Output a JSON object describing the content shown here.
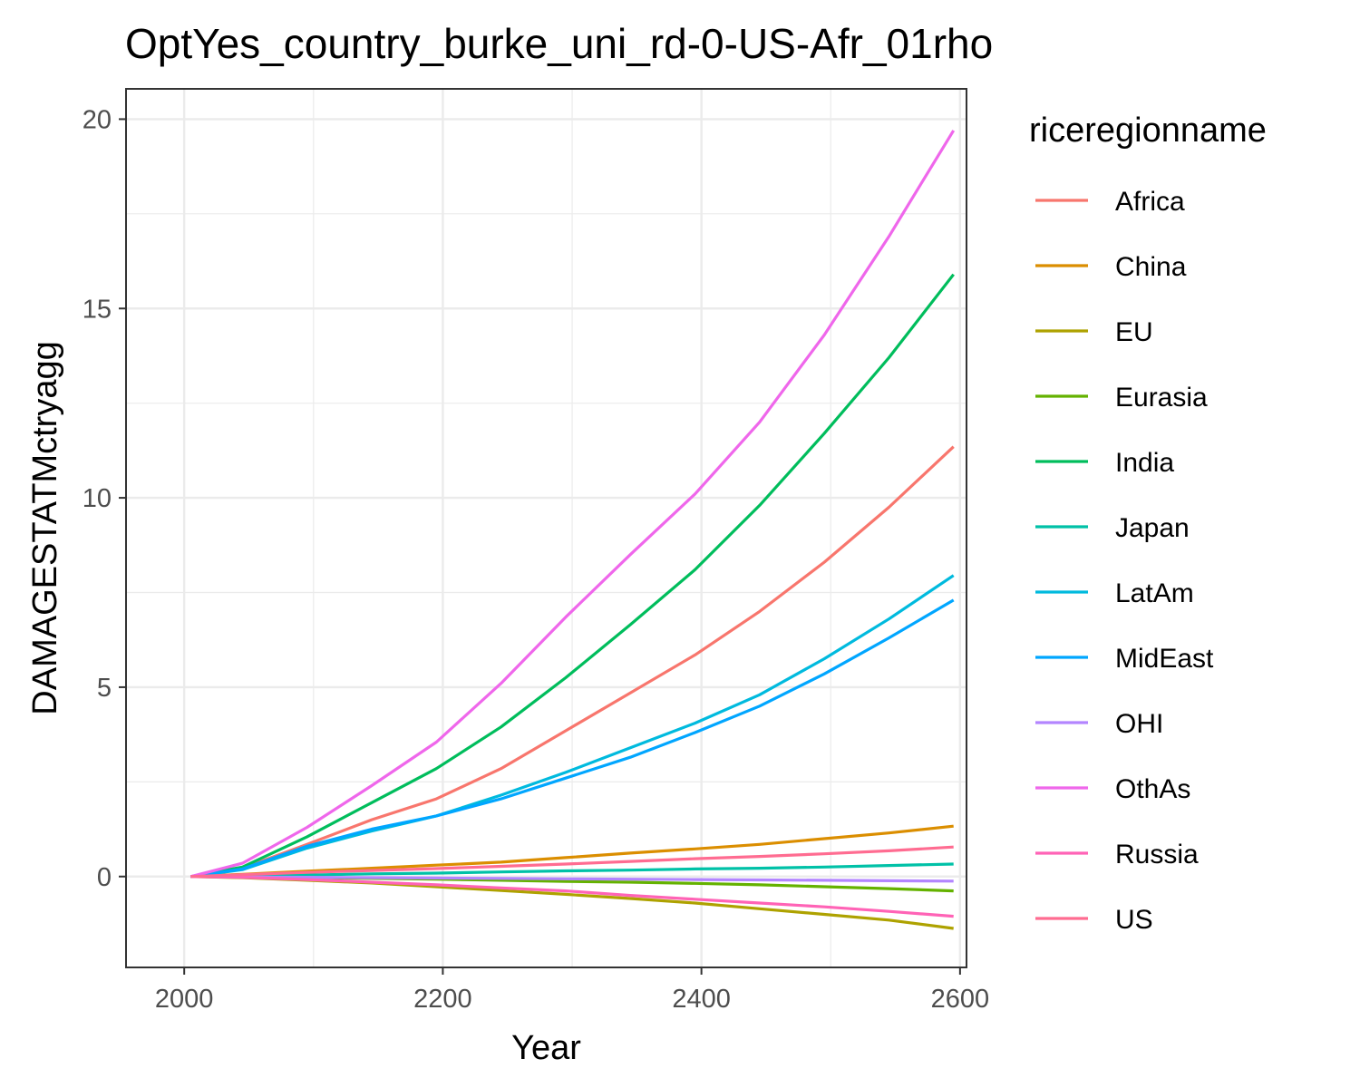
{
  "chart_data": {
    "type": "line",
    "title": "OptYes_country_burke_uni_rd-0-US-Afr_01rho",
    "xlabel": "Year",
    "ylabel": "DAMAGESTATMctryagg",
    "xlim": [
      1955,
      2605
    ],
    "ylim": [
      -2.4,
      20.8
    ],
    "x_ticks": [
      "2000",
      "2200",
      "2400",
      "2600"
    ],
    "y_ticks": [
      "0",
      "5",
      "10",
      "15",
      "20"
    ],
    "grid": true,
    "legend": {
      "title": "riceregionname",
      "position": "right"
    },
    "x": [
      2005,
      2045,
      2095,
      2145,
      2195,
      2245,
      2295,
      2345,
      2395,
      2445,
      2495,
      2545,
      2595
    ],
    "series": [
      {
        "name": "Africa",
        "color": "#F8766D",
        "values": [
          0,
          0.22,
          0.85,
          1.5,
          2.05,
          2.85,
          3.85,
          4.85,
          5.85,
          7.0,
          8.3,
          9.75,
          11.35
        ]
      },
      {
        "name": "China",
        "color": "#DB8E00",
        "values": [
          0,
          0.06,
          0.14,
          0.22,
          0.3,
          0.38,
          0.5,
          0.62,
          0.73,
          0.85,
          1.0,
          1.15,
          1.33
        ]
      },
      {
        "name": "EU",
        "color": "#AEA200",
        "values": [
          0,
          -0.03,
          -0.1,
          -0.17,
          -0.27,
          -0.37,
          -0.47,
          -0.58,
          -0.7,
          -0.85,
          -1.0,
          -1.15,
          -1.37
        ]
      },
      {
        "name": "Eurasia",
        "color": "#64B200",
        "values": [
          0,
          -0.01,
          -0.03,
          -0.05,
          -0.07,
          -0.1,
          -0.13,
          -0.15,
          -0.18,
          -0.22,
          -0.27,
          -0.32,
          -0.38
        ]
      },
      {
        "name": "India",
        "color": "#00BD5C",
        "values": [
          0,
          0.25,
          1.05,
          1.95,
          2.85,
          3.95,
          5.25,
          6.65,
          8.1,
          9.8,
          11.7,
          13.7,
          15.9
        ]
      },
      {
        "name": "Japan",
        "color": "#00C1A7",
        "values": [
          0,
          0.02,
          0.04,
          0.07,
          0.09,
          0.12,
          0.15,
          0.17,
          0.2,
          0.22,
          0.25,
          0.29,
          0.33
        ]
      },
      {
        "name": "LatAm",
        "color": "#00BADE",
        "values": [
          0,
          0.18,
          0.75,
          1.2,
          1.6,
          2.15,
          2.75,
          3.4,
          4.05,
          4.8,
          5.75,
          6.8,
          7.95
        ]
      },
      {
        "name": "MidEast",
        "color": "#00A6FF",
        "values": [
          0,
          0.2,
          0.8,
          1.25,
          1.6,
          2.05,
          2.6,
          3.15,
          3.8,
          4.5,
          5.35,
          6.3,
          7.3
        ]
      },
      {
        "name": "OHI",
        "color": "#B385FF",
        "values": [
          0,
          -0.01,
          -0.02,
          -0.03,
          -0.04,
          -0.05,
          -0.06,
          -0.07,
          -0.08,
          -0.09,
          -0.1,
          -0.11,
          -0.12
        ]
      },
      {
        "name": "OthAs",
        "color": "#EF67EB",
        "values": [
          0,
          0.35,
          1.3,
          2.4,
          3.55,
          5.1,
          6.85,
          8.5,
          10.1,
          12.0,
          14.3,
          16.9,
          19.7
        ]
      },
      {
        "name": "Russia",
        "color": "#FF63B6",
        "values": [
          0,
          -0.02,
          -0.08,
          -0.15,
          -0.22,
          -0.3,
          -0.38,
          -0.5,
          -0.6,
          -0.7,
          -0.8,
          -0.92,
          -1.05
        ]
      },
      {
        "name": "US",
        "color": "#FF6C91",
        "values": [
          0,
          0.05,
          0.11,
          0.16,
          0.21,
          0.27,
          0.33,
          0.4,
          0.47,
          0.53,
          0.6,
          0.68,
          0.78
        ]
      }
    ]
  }
}
